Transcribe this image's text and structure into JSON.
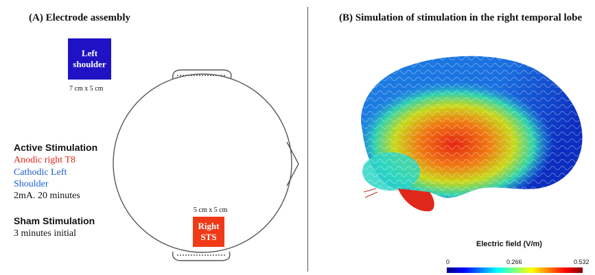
{
  "panel_a": {
    "title": "(A) Electrode assembly",
    "left_electrode": {
      "label_line1": "Left",
      "label_line2": "shoulder",
      "size": "7 cm x 5 cm",
      "color": "#1f12c4"
    },
    "right_electrode": {
      "label_line1": "Right",
      "label_line2": "STS",
      "size": "5 cm x 5 cm",
      "color": "#f03a17"
    },
    "active": {
      "heading": "Active Stimulation",
      "anodic": "Anodic right T8",
      "cathodic_line1": "Cathodic Left",
      "cathodic_line2": "Shoulder",
      "params": "2mA. 20 minutes",
      "anodic_color": "#e0261c",
      "cathodic_color": "#1a5fd0"
    },
    "sham": {
      "heading": "Sham Stimulation",
      "params": "3 minutes initial"
    }
  },
  "panel_b": {
    "title": "(B) Simulation of stimulation in the right temporal lobe",
    "colorbar": {
      "title": "Electric field (V/m)",
      "min": "0",
      "mid": "0.266",
      "max": "0.532"
    }
  }
}
